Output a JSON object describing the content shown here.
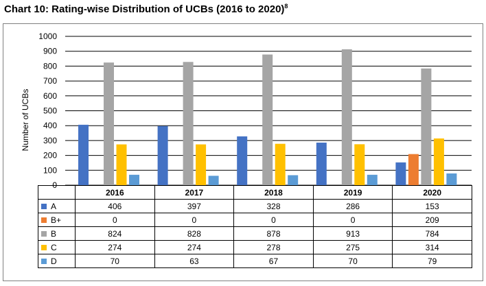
{
  "title": "Chart 10: Rating-wise Distribution of UCBs (2016 to 2020)",
  "title_footnote": "8",
  "chart_data": {
    "type": "bar",
    "title": "Chart 10: Rating-wise Distribution of UCBs (2016 to 2020)",
    "xlabel": "",
    "ylabel": "Number of UCBs",
    "ylim": [
      0,
      1000
    ],
    "yticks": [
      0,
      100,
      200,
      300,
      400,
      500,
      600,
      700,
      800,
      900,
      1000
    ],
    "grid": true,
    "legend": "data-table-below",
    "categories": [
      "2016",
      "2017",
      "2018",
      "2019",
      "2020"
    ],
    "series": [
      {
        "name": "A",
        "color": "#4472C4",
        "values": [
          406,
          397,
          328,
          286,
          153
        ]
      },
      {
        "name": "B+",
        "color": "#ED7D31",
        "values": [
          0,
          0,
          0,
          0,
          209
        ]
      },
      {
        "name": "B",
        "color": "#A5A5A5",
        "values": [
          824,
          828,
          878,
          913,
          784
        ]
      },
      {
        "name": "C",
        "color": "#FFC000",
        "values": [
          274,
          274,
          278,
          275,
          314
        ]
      },
      {
        "name": "D",
        "color": "#5B9BD5",
        "values": [
          70,
          63,
          67,
          70,
          79
        ]
      }
    ]
  }
}
